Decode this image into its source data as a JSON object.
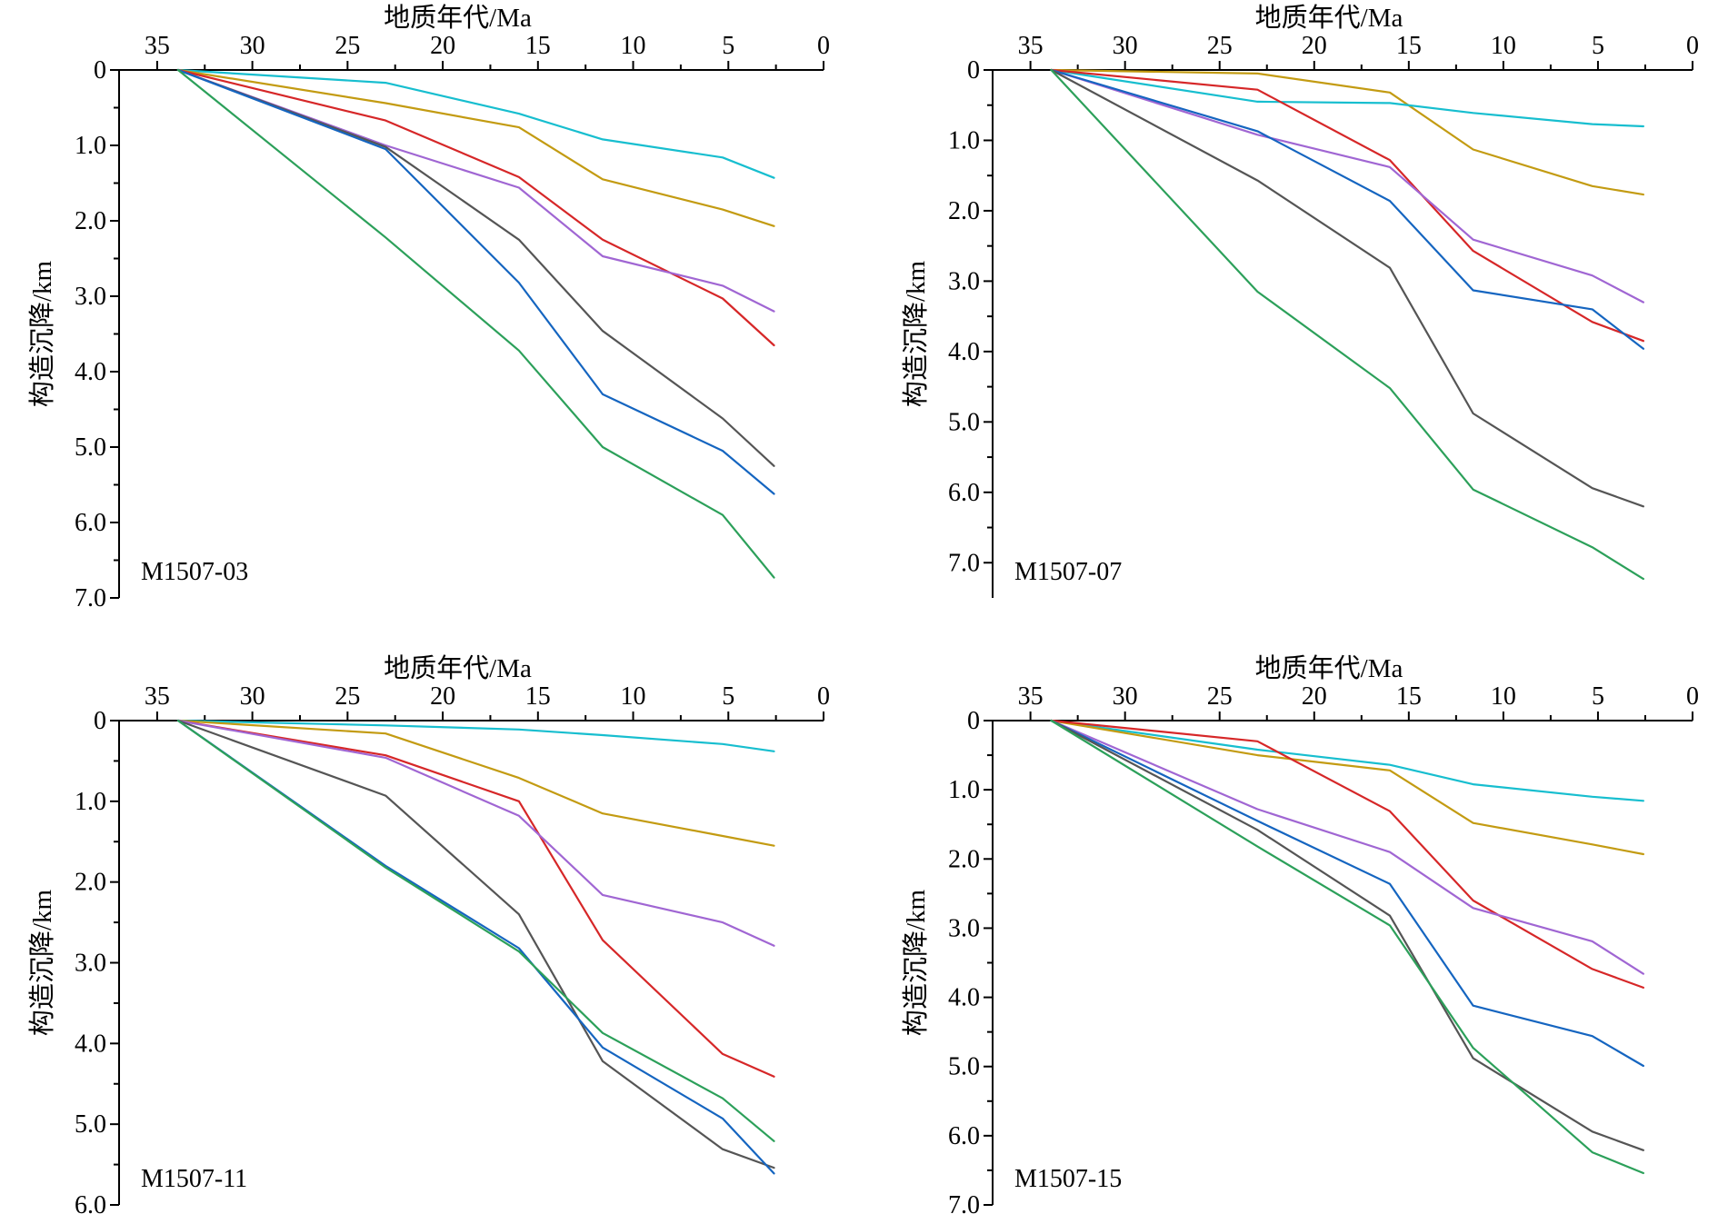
{
  "chart_data": [
    {
      "type": "line",
      "well": "M1507-03",
      "xlabel": "地质年代/Ma",
      "ylabel": "构造沉降/km",
      "xlim": [
        37,
        0
      ],
      "ylim": [
        0,
        7
      ],
      "xticks": [
        35,
        30,
        25,
        20,
        15,
        10,
        5,
        0
      ],
      "yticks": [
        0,
        1,
        2,
        3,
        4,
        5,
        6,
        7
      ],
      "ytick_labels": [
        "0",
        "1.0",
        "2.0",
        "3.0",
        "4.0",
        "5.0",
        "6.0",
        "7.0"
      ],
      "series": [
        {
          "color": "#17becf",
          "points": [
            [
              33.9,
              0
            ],
            [
              23,
              0.17
            ],
            [
              16,
              0.58
            ],
            [
              11.6,
              0.92
            ],
            [
              5.3,
              1.16
            ],
            [
              2.6,
              1.43
            ]
          ]
        },
        {
          "color": "#c39b12",
          "points": [
            [
              33.9,
              0
            ],
            [
              23,
              0.44
            ],
            [
              16,
              0.76
            ],
            [
              11.6,
              1.45
            ],
            [
              5.3,
              1.85
            ],
            [
              2.6,
              2.07
            ]
          ]
        },
        {
          "color": "#d62728",
          "points": [
            [
              33.9,
              0
            ],
            [
              23,
              0.67
            ],
            [
              16,
              1.42
            ],
            [
              11.6,
              2.25
            ],
            [
              5.3,
              3.03
            ],
            [
              2.6,
              3.65
            ]
          ]
        },
        {
          "color": "#a066d3",
          "points": [
            [
              33.9,
              0
            ],
            [
              23,
              1.0
            ],
            [
              16,
              1.56
            ],
            [
              11.6,
              2.47
            ],
            [
              5.3,
              2.86
            ],
            [
              2.6,
              3.2
            ]
          ]
        },
        {
          "color": "#555555",
          "points": [
            [
              33.9,
              0
            ],
            [
              23,
              1.02
            ],
            [
              16,
              2.25
            ],
            [
              11.6,
              3.46
            ],
            [
              5.3,
              4.62
            ],
            [
              2.6,
              5.25
            ]
          ]
        },
        {
          "color": "#1565c0",
          "points": [
            [
              33.9,
              0
            ],
            [
              23,
              1.05
            ],
            [
              16,
              2.82
            ],
            [
              11.6,
              4.3
            ],
            [
              5.3,
              5.05
            ],
            [
              2.6,
              5.62
            ]
          ]
        },
        {
          "color": "#2ca05a",
          "points": [
            [
              33.9,
              0
            ],
            [
              23,
              2.22
            ],
            [
              16,
              3.72
            ],
            [
              11.6,
              5.0
            ],
            [
              5.3,
              5.9
            ],
            [
              2.6,
              6.73
            ]
          ]
        }
      ]
    },
    {
      "type": "line",
      "well": "M1507-07",
      "xlabel": "地质年代/Ma",
      "ylabel": "构造沉降/km",
      "xlim": [
        37,
        0
      ],
      "ylim": [
        0,
        7.5
      ],
      "xticks": [
        35,
        30,
        25,
        20,
        15,
        10,
        5,
        0
      ],
      "yticks": [
        0,
        1,
        2,
        3,
        4,
        5,
        6,
        7
      ],
      "ytick_labels": [
        "0",
        "1.0",
        "2.0",
        "3.0",
        "4.0",
        "5.0",
        "6.0",
        "7.0"
      ],
      "series": [
        {
          "color": "#c39b12",
          "points": [
            [
              33.9,
              0
            ],
            [
              23,
              0.05
            ],
            [
              16,
              0.32
            ],
            [
              11.6,
              1.13
            ],
            [
              5.3,
              1.65
            ],
            [
              2.6,
              1.77
            ]
          ]
        },
        {
          "color": "#17becf",
          "points": [
            [
              33.9,
              0
            ],
            [
              23,
              0.45
            ],
            [
              16,
              0.47
            ],
            [
              11.6,
              0.61
            ],
            [
              5.3,
              0.77
            ],
            [
              2.6,
              0.8
            ]
          ]
        },
        {
          "color": "#d62728",
          "points": [
            [
              33.9,
              0
            ],
            [
              23,
              0.28
            ],
            [
              16,
              1.28
            ],
            [
              11.6,
              2.57
            ],
            [
              5.3,
              3.58
            ],
            [
              2.6,
              3.85
            ]
          ]
        },
        {
          "color": "#a066d3",
          "points": [
            [
              33.9,
              0
            ],
            [
              23,
              0.92
            ],
            [
              16,
              1.38
            ],
            [
              11.6,
              2.41
            ],
            [
              5.3,
              2.92
            ],
            [
              2.6,
              3.3
            ]
          ]
        },
        {
          "color": "#1565c0",
          "points": [
            [
              33.9,
              0
            ],
            [
              23,
              0.87
            ],
            [
              16,
              1.86
            ],
            [
              11.6,
              3.13
            ],
            [
              5.3,
              3.4
            ],
            [
              2.6,
              3.96
            ]
          ]
        },
        {
          "color": "#555555",
          "points": [
            [
              33.9,
              0
            ],
            [
              23,
              1.57
            ],
            [
              16,
              2.81
            ],
            [
              11.6,
              4.88
            ],
            [
              5.3,
              5.94
            ],
            [
              2.6,
              6.2
            ]
          ]
        },
        {
          "color": "#2ca05a",
          "points": [
            [
              33.9,
              0
            ],
            [
              23,
              3.15
            ],
            [
              16,
              4.52
            ],
            [
              11.6,
              5.96
            ],
            [
              5.3,
              6.78
            ],
            [
              2.6,
              7.23
            ]
          ]
        }
      ]
    },
    {
      "type": "line",
      "well": "M1507-11",
      "xlabel": "地质年代/Ma",
      "ylabel": "构造沉降/km",
      "xlim": [
        37,
        0
      ],
      "ylim": [
        0,
        6
      ],
      "xticks": [
        35,
        30,
        25,
        20,
        15,
        10,
        5,
        0
      ],
      "yticks": [
        0,
        1,
        2,
        3,
        4,
        5,
        6
      ],
      "ytick_labels": [
        "0",
        "1.0",
        "2.0",
        "3.0",
        "4.0",
        "5.0",
        "6.0"
      ],
      "series": [
        {
          "color": "#17becf",
          "points": [
            [
              33.9,
              0
            ],
            [
              23,
              0.06
            ],
            [
              16,
              0.11
            ],
            [
              11.6,
              0.18
            ],
            [
              5.3,
              0.29
            ],
            [
              2.6,
              0.38
            ]
          ]
        },
        {
          "color": "#c39b12",
          "points": [
            [
              33.9,
              0
            ],
            [
              23,
              0.16
            ],
            [
              16,
              0.71
            ],
            [
              11.6,
              1.15
            ],
            [
              5.3,
              1.43
            ],
            [
              2.6,
              1.55
            ]
          ]
        },
        {
          "color": "#d62728",
          "points": [
            [
              33.9,
              0
            ],
            [
              23,
              0.43
            ],
            [
              16,
              1.0
            ],
            [
              11.6,
              2.72
            ],
            [
              5.3,
              4.13
            ],
            [
              2.6,
              4.41
            ]
          ]
        },
        {
          "color": "#a066d3",
          "points": [
            [
              33.9,
              0
            ],
            [
              23,
              0.46
            ],
            [
              16,
              1.18
            ],
            [
              11.6,
              2.16
            ],
            [
              5.3,
              2.5
            ],
            [
              2.6,
              2.79
            ]
          ]
        },
        {
          "color": "#555555",
          "points": [
            [
              33.9,
              0
            ],
            [
              23,
              0.93
            ],
            [
              16,
              2.4
            ],
            [
              11.6,
              4.22
            ],
            [
              5.3,
              5.31
            ],
            [
              2.6,
              5.54
            ]
          ]
        },
        {
          "color": "#1565c0",
          "points": [
            [
              33.9,
              0
            ],
            [
              23,
              1.8
            ],
            [
              16,
              2.82
            ],
            [
              11.6,
              4.05
            ],
            [
              5.3,
              4.93
            ],
            [
              2.6,
              5.61
            ]
          ]
        },
        {
          "color": "#2ca05a",
          "points": [
            [
              33.9,
              0
            ],
            [
              23,
              1.82
            ],
            [
              16,
              2.86
            ],
            [
              11.6,
              3.87
            ],
            [
              5.3,
              4.68
            ],
            [
              2.6,
              5.21
            ]
          ]
        }
      ]
    },
    {
      "type": "line",
      "well": "M1507-15",
      "xlabel": "地质年代/Ma",
      "ylabel": "构造沉降/km",
      "xlim": [
        37,
        0
      ],
      "ylim": [
        0,
        7
      ],
      "xticks": [
        35,
        30,
        25,
        20,
        15,
        10,
        5,
        0
      ],
      "yticks": [
        0,
        1,
        2,
        3,
        4,
        5,
        6,
        7
      ],
      "ytick_labels": [
        "0",
        "1.0",
        "2.0",
        "3.0",
        "4.0",
        "5.0",
        "6.0",
        "7.0"
      ],
      "series": [
        {
          "color": "#17becf",
          "points": [
            [
              33.9,
              0
            ],
            [
              23,
              0.42
            ],
            [
              16,
              0.64
            ],
            [
              11.6,
              0.92
            ],
            [
              5.3,
              1.1
            ],
            [
              2.6,
              1.16
            ]
          ]
        },
        {
          "color": "#c39b12",
          "points": [
            [
              33.9,
              0
            ],
            [
              23,
              0.5
            ],
            [
              16,
              0.72
            ],
            [
              11.6,
              1.48
            ],
            [
              5.3,
              1.79
            ],
            [
              2.6,
              1.93
            ]
          ]
        },
        {
          "color": "#d62728",
          "points": [
            [
              33.9,
              0
            ],
            [
              23,
              0.3
            ],
            [
              16,
              1.31
            ],
            [
              11.6,
              2.6
            ],
            [
              5.3,
              3.59
            ],
            [
              2.6,
              3.86
            ]
          ]
        },
        {
          "color": "#a066d3",
          "points": [
            [
              33.9,
              0
            ],
            [
              23,
              1.28
            ],
            [
              16,
              1.9
            ],
            [
              11.6,
              2.71
            ],
            [
              5.3,
              3.19
            ],
            [
              2.6,
              3.66
            ]
          ]
        },
        {
          "color": "#1565c0",
          "points": [
            [
              33.9,
              0
            ],
            [
              23,
              1.45
            ],
            [
              16,
              2.36
            ],
            [
              11.6,
              4.12
            ],
            [
              5.3,
              4.56
            ],
            [
              2.6,
              4.99
            ]
          ]
        },
        {
          "color": "#555555",
          "points": [
            [
              33.9,
              0
            ],
            [
              23,
              1.58
            ],
            [
              16,
              2.82
            ],
            [
              11.6,
              4.88
            ],
            [
              5.3,
              5.94
            ],
            [
              2.6,
              6.21
            ]
          ]
        },
        {
          "color": "#2ca05a",
          "points": [
            [
              33.9,
              0
            ],
            [
              23,
              1.82
            ],
            [
              16,
              2.96
            ],
            [
              11.6,
              4.73
            ],
            [
              5.3,
              6.24
            ],
            [
              2.6,
              6.54
            ]
          ]
        }
      ]
    }
  ]
}
